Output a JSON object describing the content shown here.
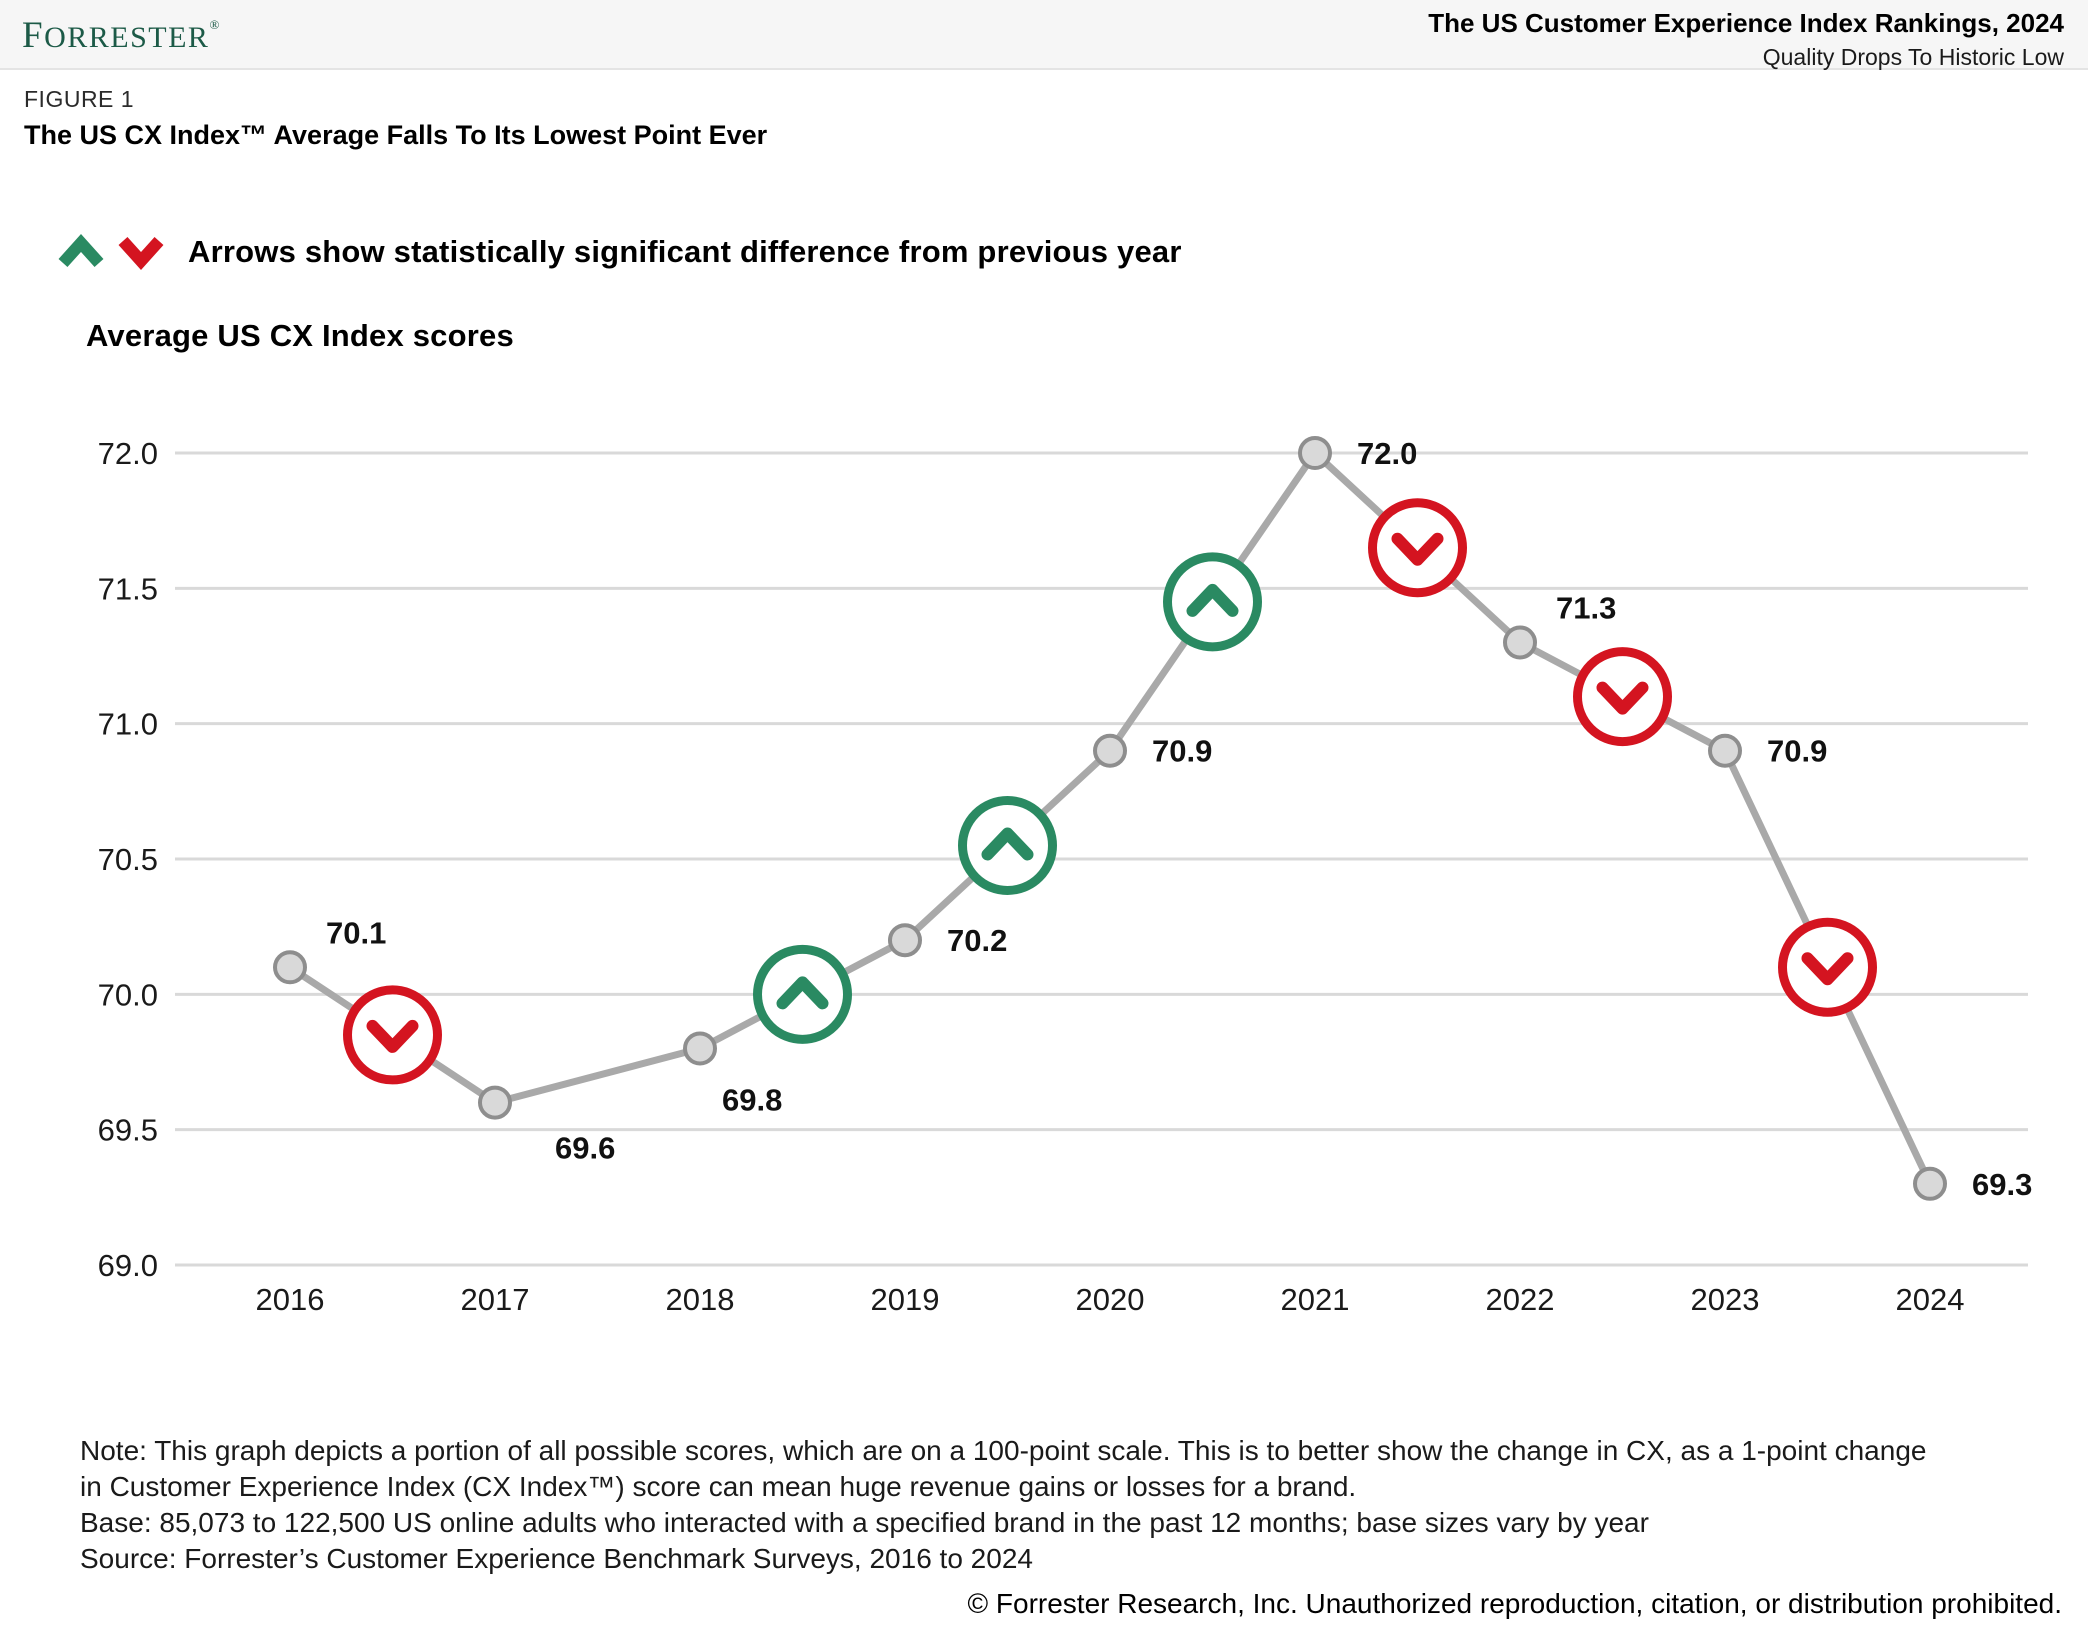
{
  "header": {
    "logo": "Forrester",
    "logo_reg": "®",
    "report_title": "The US Customer Experience Index Rankings, 2024",
    "report_subtitle": "Quality Drops To Historic Low"
  },
  "figure": {
    "label": "FIGURE 1",
    "title": "The US CX Index™ Average Falls To Its Lowest Point Ever"
  },
  "legend": {
    "up_icon": "chevron-up",
    "down_icon": "chevron-down",
    "text": "Arrows show statistically significant difference from previous year"
  },
  "chart_title": "Average US CX Index scores",
  "chart_data": {
    "type": "line",
    "title": "Average US CX Index scores",
    "x": [
      2016,
      2017,
      2018,
      2019,
      2020,
      2021,
      2022,
      2023,
      2024
    ],
    "values": [
      70.1,
      69.6,
      69.8,
      70.2,
      70.9,
      72.0,
      71.3,
      70.9,
      69.3
    ],
    "point_labels": [
      "70.1",
      "69.6",
      "69.8",
      "70.2",
      "70.9",
      "72.0",
      "71.3",
      "70.9",
      "69.3"
    ],
    "label_positions": [
      "above-right",
      "below-right",
      "below",
      "right",
      "right",
      "right",
      "above-right",
      "right",
      "right"
    ],
    "significant": [
      "down",
      null,
      "up",
      "up",
      "up",
      "down",
      "down",
      "down"
    ],
    "ylim": [
      69.0,
      72.0
    ],
    "yticks": [
      "72.0",
      "71.5",
      "71.0",
      "70.5",
      "70.0",
      "69.5",
      "69.0"
    ],
    "grid": true,
    "legend_position": "top-left",
    "colors": {
      "line": "#a9a9a9",
      "point_fill": "#d9d9d9",
      "point_stroke": "#8e8e8e",
      "grid": "#d9d9d9",
      "up": "#2a8a62",
      "down": "#d41420",
      "label": "#111111"
    }
  },
  "notes": {
    "note_line1": "Note: This graph depicts a portion of all possible scores, which are on a 100-point scale. This is to better show the change in CX, as a 1-point change",
    "note_line2": "in Customer Experience Index (CX Index™) score can mean huge revenue gains or losses for a brand.",
    "base": "Base: 85,073 to 122,500 US online adults who interacted with a specified brand in the past 12 months; base sizes vary by year",
    "source": "Source: Forrester’s Customer Experience Benchmark Surveys, 2016 to 2024"
  },
  "footer": {
    "copyright": "© Forrester Research, Inc. Unauthorized reproduction, citation, or distribution prohibited."
  }
}
